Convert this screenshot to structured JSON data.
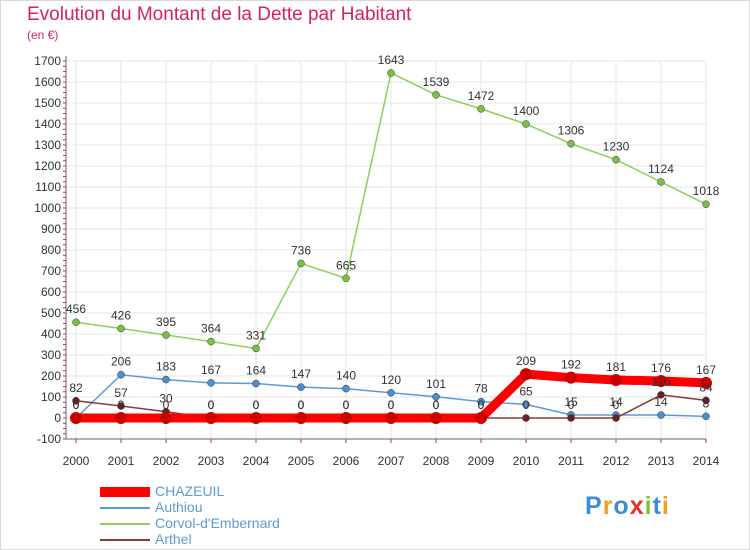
{
  "title": "Evolution du Montant de la Dette par Habitant",
  "unit_label": "(en €)",
  "logo": {
    "letters": [
      "P",
      "r",
      "o",
      "x",
      "i",
      "t",
      "i"
    ],
    "colors": [
      "#3a8fd6",
      "#f0a020",
      "#3a8fd6",
      "#e0342a",
      "#7cc242",
      "#3a8fd6",
      "#f0a020"
    ]
  },
  "chart_data": {
    "type": "line",
    "title": "Evolution du Montant de la Dette par Habitant",
    "ylabel": "(en €)",
    "xlabel": "",
    "x": [
      "2000",
      "2001",
      "2002",
      "2003",
      "2004",
      "2005",
      "2006",
      "2007",
      "2008",
      "2009",
      "2010",
      "2011",
      "2012",
      "2013",
      "2014"
    ],
    "ylim": [
      -100,
      1700
    ],
    "yticks": [
      -100,
      0,
      100,
      200,
      300,
      400,
      500,
      600,
      700,
      800,
      900,
      1000,
      1100,
      1200,
      1300,
      1400,
      1500,
      1600,
      1700
    ],
    "grid": true,
    "legend_position": "bottom-left",
    "series": [
      {
        "name": "CHAZEUIL",
        "color": "#ff0000",
        "values": [
          0,
          0,
          0,
          0,
          0,
          0,
          0,
          0,
          0,
          0,
          209,
          192,
          181,
          176,
          167
        ],
        "labels": [
          "0",
          "0",
          "0",
          "0",
          "0",
          "0",
          "0",
          "0",
          "0",
          "0",
          "209",
          "192",
          "181",
          "176",
          "167"
        ]
      },
      {
        "name": "Authiou",
        "color": "#5b9bd5",
        "values": [
          0,
          206,
          183,
          167,
          164,
          147,
          140,
          120,
          101,
          78,
          65,
          15,
          14,
          14,
          8
        ],
        "labels": [
          "0",
          "206",
          "183",
          "167",
          "164",
          "147",
          "140",
          "120",
          "101",
          "78",
          "65",
          "15",
          "14",
          "14",
          "8"
        ]
      },
      {
        "name": "Corvol-d'Embernard",
        "color": "#8bd05a",
        "values": [
          456,
          426,
          395,
          364,
          331,
          736,
          665,
          1643,
          1539,
          1472,
          1400,
          1306,
          1230,
          1124,
          1018
        ],
        "labels": [
          "456",
          "426",
          "395",
          "364",
          "331",
          "736",
          "665",
          "1643",
          "1539",
          "1472",
          "1400",
          "1306",
          "1230",
          "1124",
          "1018"
        ]
      },
      {
        "name": "Arthel",
        "color": "#8b3a3a",
        "values": [
          82,
          57,
          30,
          0,
          0,
          0,
          0,
          0,
          0,
          0,
          0,
          0,
          0,
          110,
          84
        ],
        "labels": [
          "82",
          "57",
          "30",
          "0",
          "0",
          "0",
          "0",
          "0",
          "0",
          "0",
          "0",
          "0",
          "0",
          "110",
          "84"
        ]
      }
    ]
  }
}
